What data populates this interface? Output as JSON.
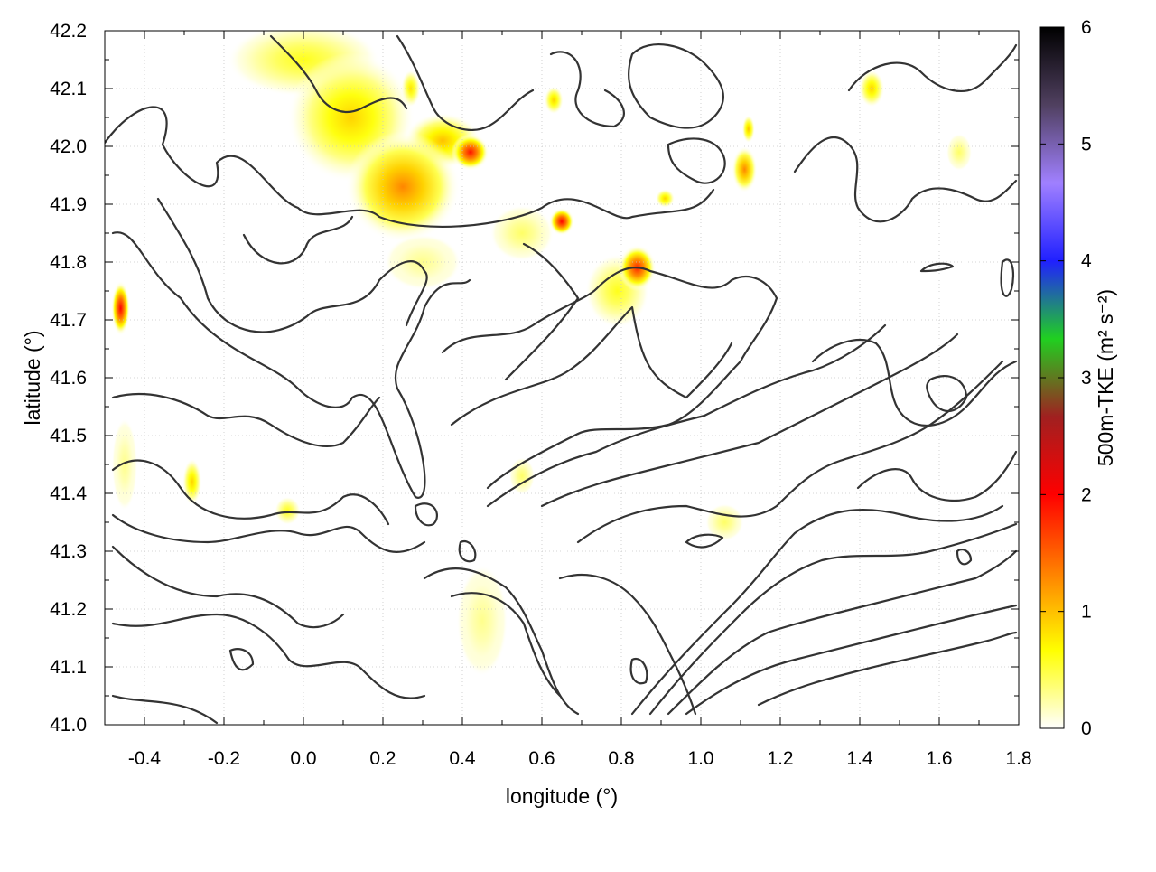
{
  "chart_data": {
    "type": "heatmap",
    "title": "",
    "xlabel": "longitude (°)",
    "ylabel": "latitude (°)",
    "xlim": [
      -0.5,
      1.8
    ],
    "ylim": [
      41.0,
      42.2
    ],
    "x_ticks": [
      -0.4,
      -0.2,
      0.0,
      0.2,
      0.4,
      0.6,
      0.8,
      1.0,
      1.2,
      1.4,
      1.6,
      1.8
    ],
    "x_tick_labels": [
      "-0.4",
      "-0.2",
      "0.0",
      "0.2",
      "0.4",
      "0.6",
      "0.8",
      "1.0",
      "1.2",
      "1.4",
      "1.6",
      "1.8"
    ],
    "y_ticks": [
      41.0,
      41.1,
      41.2,
      41.3,
      41.4,
      41.5,
      41.6,
      41.7,
      41.8,
      41.9,
      42.0,
      42.1,
      42.2
    ],
    "y_tick_labels": [
      "41.0",
      "41.1",
      "41.2",
      "41.3",
      "41.4",
      "41.5",
      "41.6",
      "41.7",
      "41.8",
      "41.9",
      "42.0",
      "42.1",
      "42.2"
    ],
    "grid": true,
    "colorbar": {
      "label": "500m-TKE (m² s⁻²)",
      "range": [
        0,
        6
      ],
      "ticks": [
        0,
        1,
        2,
        3,
        4,
        5,
        6
      ],
      "tick_labels": [
        "0",
        "1",
        "2",
        "3",
        "4",
        "5",
        "6"
      ],
      "colors": [
        "#ffffff",
        "#ffff00",
        "#ff8000",
        "#ff0000",
        "#a02020",
        "#20d020",
        "#2020ff",
        "#a080ff",
        "#504060",
        "#000000"
      ]
    },
    "hotspots": [
      {
        "x": 0.25,
        "y": 41.93,
        "value": 1.3,
        "sx": 0.09,
        "sy": 0.06
      },
      {
        "x": 0.12,
        "y": 42.05,
        "value": 0.9,
        "sx": 0.1,
        "sy": 0.07
      },
      {
        "x": 0.0,
        "y": 42.15,
        "value": 0.6,
        "sx": 0.12,
        "sy": 0.04
      },
      {
        "x": 0.42,
        "y": 41.99,
        "value": 1.9,
        "sx": 0.03,
        "sy": 0.02
      },
      {
        "x": 0.35,
        "y": 42.01,
        "value": 1.0,
        "sx": 0.06,
        "sy": 0.03
      },
      {
        "x": 0.65,
        "y": 41.87,
        "value": 2.0,
        "sx": 0.02,
        "sy": 0.015
      },
      {
        "x": 0.84,
        "y": 41.79,
        "value": 1.8,
        "sx": 0.03,
        "sy": 0.025
      },
      {
        "x": 0.79,
        "y": 41.75,
        "value": 0.6,
        "sx": 0.05,
        "sy": 0.04
      },
      {
        "x": -0.46,
        "y": 41.72,
        "value": 2.0,
        "sx": 0.015,
        "sy": 0.03
      },
      {
        "x": 1.11,
        "y": 41.96,
        "value": 1.3,
        "sx": 0.02,
        "sy": 0.025
      },
      {
        "x": 1.12,
        "y": 42.03,
        "value": 1.0,
        "sx": 0.01,
        "sy": 0.015
      },
      {
        "x": 1.43,
        "y": 42.1,
        "value": 0.9,
        "sx": 0.02,
        "sy": 0.02
      },
      {
        "x": 0.63,
        "y": 42.08,
        "value": 0.9,
        "sx": 0.015,
        "sy": 0.015
      },
      {
        "x": 0.27,
        "y": 42.1,
        "value": 0.8,
        "sx": 0.015,
        "sy": 0.02
      },
      {
        "x": 0.91,
        "y": 41.91,
        "value": 0.9,
        "sx": 0.015,
        "sy": 0.01
      },
      {
        "x": -0.28,
        "y": 41.42,
        "value": 0.9,
        "sx": 0.015,
        "sy": 0.025
      },
      {
        "x": -0.04,
        "y": 41.37,
        "value": 0.6,
        "sx": 0.02,
        "sy": 0.015
      },
      {
        "x": 0.55,
        "y": 41.43,
        "value": 0.4,
        "sx": 0.02,
        "sy": 0.02
      },
      {
        "x": 1.06,
        "y": 41.35,
        "value": 0.4,
        "sx": 0.03,
        "sy": 0.02
      },
      {
        "x": 1.65,
        "y": 41.99,
        "value": 0.4,
        "sx": 0.02,
        "sy": 0.02
      },
      {
        "x": 0.55,
        "y": 41.85,
        "value": 0.4,
        "sx": 0.05,
        "sy": 0.03
      },
      {
        "x": 0.45,
        "y": 41.18,
        "value": 0.3,
        "sx": 0.04,
        "sy": 0.06
      },
      {
        "x": -0.45,
        "y": 41.45,
        "value": 0.3,
        "sx": 0.02,
        "sy": 0.05
      },
      {
        "x": 0.3,
        "y": 41.8,
        "value": 0.3,
        "sx": 0.06,
        "sy": 0.03
      }
    ]
  }
}
